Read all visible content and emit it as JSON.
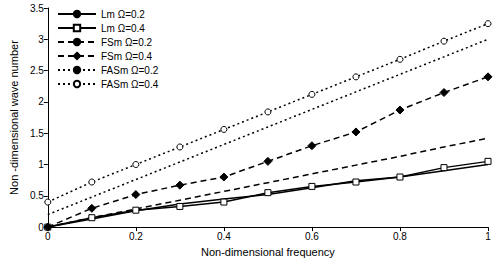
{
  "chart_data": {
    "type": "line",
    "xlabel": "Non-dimensional frequency",
    "ylabel": "Non -dimensional wave number",
    "x": [
      0,
      0.1,
      0.2,
      0.3,
      0.4,
      0.5,
      0.6,
      0.7,
      0.8,
      0.9,
      1
    ],
    "xlim": [
      0,
      1
    ],
    "xticks": [
      0,
      0.2,
      0.4,
      0.6,
      0.8,
      1
    ],
    "ylim": [
      0,
      3.5
    ],
    "yticks": [
      0,
      0.5,
      1,
      1.5,
      2,
      2.5,
      3,
      3.5
    ],
    "grid": false,
    "legend": "upper left",
    "series": [
      {
        "name": "Lm Ω=0.2",
        "color": "#000000",
        "marker": "none",
        "line_style": "solid",
        "values": [
          0,
          0.13,
          0.26,
          0.37,
          0.45,
          0.52,
          0.63,
          0.74,
          0.8,
          0.9,
          1.0
        ]
      },
      {
        "name": "Lm Ω=0.4",
        "color": "#000000",
        "marker": "open_square",
        "line_style": "solid",
        "values": [
          0,
          0.15,
          0.27,
          0.33,
          0.4,
          0.55,
          0.65,
          0.72,
          0.8,
          0.95,
          1.05
        ]
      },
      {
        "name": "FSm Ω=0.2",
        "color": "#000000",
        "marker": "none",
        "line_style": "dashed",
        "values": [
          0,
          0.15,
          0.29,
          0.43,
          0.57,
          0.71,
          0.85,
          0.99,
          1.13,
          1.28,
          1.42
        ]
      },
      {
        "name": "FSm Ω=0.4",
        "color": "#000000",
        "marker": "diamond",
        "line_style": "dashed",
        "values": [
          0,
          0.3,
          0.52,
          0.67,
          0.8,
          1.05,
          1.3,
          1.52,
          1.87,
          2.15,
          2.4
        ]
      },
      {
        "name": "FASm Ω=0.2",
        "color": "#000000",
        "marker": "none",
        "line_style": "dotted",
        "values": [
          0.2,
          0.48,
          0.76,
          1.04,
          1.32,
          1.6,
          1.88,
          2.16,
          2.44,
          2.72,
          3.0
        ]
      },
      {
        "name": "FASm Ω=0.4",
        "color": "#000000",
        "marker": "open_circle",
        "line_style": "dotted",
        "values": [
          0.4,
          0.72,
          1.0,
          1.28,
          1.56,
          1.84,
          2.12,
          2.4,
          2.68,
          2.97,
          3.25
        ]
      }
    ]
  }
}
